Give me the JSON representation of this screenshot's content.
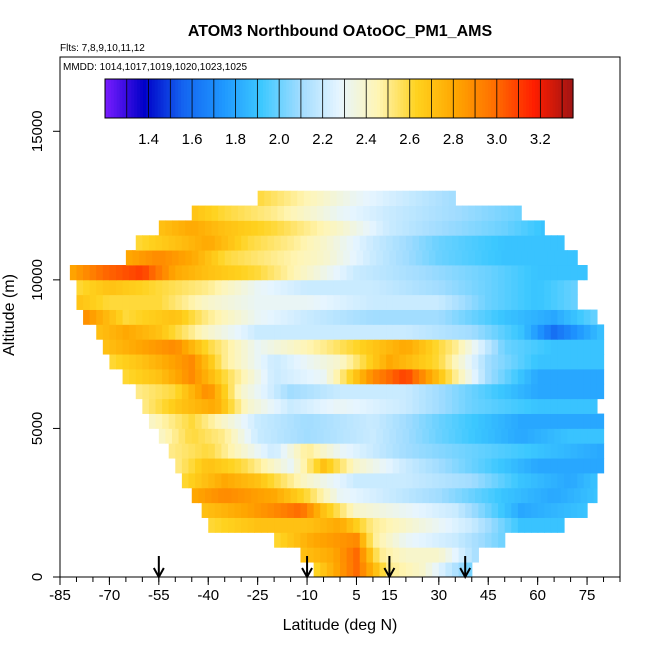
{
  "chart_data": {
    "type": "heatmap",
    "title": "ATOM3 Northbound OAtoOC_PM1_AMS",
    "subtitle_flights": "Flts: 7,8,9,10,11,12",
    "subtitle_dates": "MMDD: 1014,1017,1019,1020,1023,1025",
    "xlabel": "Latitude (deg N)",
    "ylabel": "Altitude (m)",
    "xlim": [
      -85,
      85
    ],
    "ylim": [
      0,
      17500
    ],
    "x_ticks": [
      "-85",
      "-70",
      "-55",
      "-40",
      "-25",
      "-10",
      "5",
      "15",
      "30",
      "45",
      "60",
      "75"
    ],
    "y_ticks": [
      "0",
      "5000",
      "10000",
      "15000"
    ],
    "colorbar": {
      "range": [
        1.2,
        3.35
      ],
      "ticks": [
        "1.4",
        "1.6",
        "1.8",
        "2.0",
        "2.2",
        "2.4",
        "2.6",
        "2.8",
        "3.0",
        "3.2"
      ],
      "colors": [
        "#7a1cff",
        "#0000c8",
        "#1464f0",
        "#1e96ff",
        "#3cc8ff",
        "#a0dcff",
        "#e6f5ff",
        "#fff5b4",
        "#ffd21e",
        "#ffa500",
        "#ff6e00",
        "#ff1e00",
        "#a01414"
      ]
    },
    "arrows_latitude": [
      -55,
      -10,
      15,
      38
    ],
    "altitude_bins_m": [
      0,
      500,
      1000,
      1500,
      2000,
      2500,
      3000,
      3500,
      4000,
      4500,
      5000,
      5500,
      6000,
      6500,
      7000,
      7500,
      8000,
      8500,
      9000,
      9500,
      10000,
      10500,
      11000,
      11500,
      12000,
      12500
    ],
    "lat_extent_by_altitude_deg_N": [
      [
        -8,
        40
      ],
      [
        -12,
        42
      ],
      [
        -20,
        50
      ],
      [
        -40,
        68
      ],
      [
        -42,
        75
      ],
      [
        -45,
        78
      ],
      [
        -48,
        78
      ],
      [
        -50,
        80
      ],
      [
        -52,
        80
      ],
      [
        -55,
        80
      ],
      [
        -58,
        80
      ],
      [
        -60,
        78
      ],
      [
        -62,
        80
      ],
      [
        -66,
        80
      ],
      [
        -70,
        80
      ],
      [
        -72,
        80
      ],
      [
        -74,
        80
      ],
      [
        -78,
        78
      ],
      [
        -80,
        72
      ],
      [
        -80,
        72
      ],
      [
        -82,
        75
      ],
      [
        -65,
        72
      ],
      [
        -62,
        68
      ],
      [
        -55,
        62
      ],
      [
        -45,
        55
      ],
      [
        -25,
        35
      ]
    ],
    "profile_values_by_altitude": [
      [
        [
          -8,
          2.6
        ],
        [
          5,
          3.0
        ],
        [
          15,
          2.5
        ],
        [
          25,
          2.4
        ],
        [
          40,
          2.0
        ]
      ],
      [
        [
          -12,
          2.7
        ],
        [
          -2,
          2.8
        ],
        [
          5,
          3.0
        ],
        [
          12,
          2.5
        ],
        [
          20,
          2.4
        ],
        [
          30,
          2.4
        ],
        [
          42,
          2.1
        ]
      ],
      [
        [
          -20,
          2.6
        ],
        [
          -8,
          2.8
        ],
        [
          5,
          2.9
        ],
        [
          10,
          2.5
        ],
        [
          20,
          2.3
        ],
        [
          35,
          2.2
        ],
        [
          50,
          2.0
        ]
      ],
      [
        [
          -40,
          2.6
        ],
        [
          -25,
          2.7
        ],
        [
          -10,
          2.7
        ],
        [
          0,
          2.8
        ],
        [
          10,
          2.5
        ],
        [
          20,
          2.4
        ],
        [
          40,
          2.2
        ],
        [
          55,
          1.9
        ],
        [
          68,
          1.9
        ]
      ],
      [
        [
          -42,
          2.7
        ],
        [
          -30,
          2.8
        ],
        [
          -20,
          2.9
        ],
        [
          -12,
          3.0
        ],
        [
          -5,
          2.7
        ],
        [
          5,
          2.4
        ],
        [
          20,
          2.3
        ],
        [
          35,
          2.2
        ],
        [
          55,
          1.8
        ],
        [
          75,
          1.9
        ]
      ],
      [
        [
          -45,
          2.8
        ],
        [
          -35,
          2.9
        ],
        [
          -20,
          2.8
        ],
        [
          -10,
          2.6
        ],
        [
          0,
          2.3
        ],
        [
          15,
          2.2
        ],
        [
          30,
          2.1
        ],
        [
          50,
          1.9
        ],
        [
          65,
          1.8
        ],
        [
          78,
          1.9
        ]
      ],
      [
        [
          -48,
          2.6
        ],
        [
          -35,
          2.8
        ],
        [
          -25,
          2.7
        ],
        [
          -10,
          2.4
        ],
        [
          5,
          2.2
        ],
        [
          20,
          2.2
        ],
        [
          40,
          2.1
        ],
        [
          55,
          1.9
        ],
        [
          70,
          1.8
        ],
        [
          78,
          1.9
        ]
      ],
      [
        [
          -50,
          2.5
        ],
        [
          -40,
          2.7
        ],
        [
          -30,
          2.6
        ],
        [
          -15,
          2.3
        ],
        [
          -5,
          2.7
        ],
        [
          5,
          2.4
        ],
        [
          20,
          2.2
        ],
        [
          40,
          2.0
        ],
        [
          60,
          1.8
        ],
        [
          80,
          1.8
        ]
      ],
      [
        [
          -52,
          2.5
        ],
        [
          -40,
          2.6
        ],
        [
          -30,
          2.4
        ],
        [
          -20,
          2.2
        ],
        [
          -10,
          2.5
        ],
        [
          0,
          2.3
        ],
        [
          20,
          2.1
        ],
        [
          40,
          2.0
        ],
        [
          60,
          1.9
        ],
        [
          80,
          1.8
        ]
      ],
      [
        [
          -55,
          2.4
        ],
        [
          -45,
          2.6
        ],
        [
          -35,
          2.5
        ],
        [
          -25,
          2.2
        ],
        [
          -10,
          2.1
        ],
        [
          10,
          2.2
        ],
        [
          30,
          2.0
        ],
        [
          55,
          1.8
        ],
        [
          70,
          1.9
        ],
        [
          80,
          1.9
        ]
      ],
      [
        [
          -58,
          2.4
        ],
        [
          -45,
          2.6
        ],
        [
          -35,
          2.4
        ],
        [
          -25,
          2.2
        ],
        [
          -10,
          2.1
        ],
        [
          10,
          2.2
        ],
        [
          30,
          2.0
        ],
        [
          55,
          1.8
        ],
        [
          70,
          1.8
        ],
        [
          80,
          1.8
        ]
      ],
      [
        [
          -60,
          2.5
        ],
        [
          -48,
          2.7
        ],
        [
          -38,
          2.8
        ],
        [
          -28,
          2.4
        ],
        [
          -15,
          2.2
        ],
        [
          0,
          2.3
        ],
        [
          20,
          2.2
        ],
        [
          40,
          2.0
        ],
        [
          60,
          1.9
        ],
        [
          78,
          1.9
        ]
      ],
      [
        [
          -62,
          2.5
        ],
        [
          -50,
          2.6
        ],
        [
          -40,
          2.9
        ],
        [
          -30,
          2.4
        ],
        [
          -15,
          2.1
        ],
        [
          0,
          2.2
        ],
        [
          20,
          2.2
        ],
        [
          40,
          2.0
        ],
        [
          60,
          1.8
        ],
        [
          80,
          1.8
        ]
      ],
      [
        [
          -66,
          2.6
        ],
        [
          -55,
          2.7
        ],
        [
          -45,
          2.9
        ],
        [
          -35,
          2.6
        ],
        [
          -20,
          2.2
        ],
        [
          -5,
          2.3
        ],
        [
          10,
          2.9
        ],
        [
          20,
          3.1
        ],
        [
          30,
          2.7
        ],
        [
          45,
          2.1
        ],
        [
          60,
          1.8
        ],
        [
          80,
          1.8
        ]
      ],
      [
        [
          -70,
          2.6
        ],
        [
          -60,
          2.7
        ],
        [
          -45,
          2.9
        ],
        [
          -35,
          2.5
        ],
        [
          -20,
          2.2
        ],
        [
          0,
          2.4
        ],
        [
          15,
          2.8
        ],
        [
          30,
          2.6
        ],
        [
          45,
          2.1
        ],
        [
          60,
          1.9
        ],
        [
          80,
          1.9
        ]
      ],
      [
        [
          -72,
          2.7
        ],
        [
          -62,
          2.8
        ],
        [
          -50,
          2.9
        ],
        [
          -40,
          2.6
        ],
        [
          -25,
          2.3
        ],
        [
          -5,
          2.5
        ],
        [
          20,
          2.8
        ],
        [
          35,
          2.5
        ],
        [
          50,
          2.0
        ],
        [
          65,
          1.9
        ],
        [
          80,
          1.9
        ]
      ],
      [
        [
          -74,
          2.7
        ],
        [
          -65,
          2.8
        ],
        [
          -55,
          2.7
        ],
        [
          -40,
          2.4
        ],
        [
          -25,
          2.2
        ],
        [
          0,
          2.2
        ],
        [
          20,
          2.2
        ],
        [
          40,
          2.1
        ],
        [
          55,
          1.9
        ],
        [
          65,
          1.6
        ],
        [
          80,
          1.9
        ]
      ],
      [
        [
          -78,
          2.9
        ],
        [
          -65,
          2.6
        ],
        [
          -50,
          2.7
        ],
        [
          -40,
          2.5
        ],
        [
          -25,
          2.3
        ],
        [
          -10,
          2.2
        ],
        [
          10,
          2.1
        ],
        [
          30,
          2.1
        ],
        [
          50,
          1.9
        ],
        [
          65,
          1.8
        ],
        [
          78,
          2.0
        ]
      ],
      [
        [
          -80,
          2.7
        ],
        [
          -70,
          2.6
        ],
        [
          -55,
          2.6
        ],
        [
          -40,
          2.4
        ],
        [
          -25,
          2.3
        ],
        [
          -10,
          2.3
        ],
        [
          10,
          2.2
        ],
        [
          30,
          2.2
        ],
        [
          45,
          2.0
        ],
        [
          60,
          1.9
        ],
        [
          72,
          2.0
        ]
      ],
      [
        [
          -80,
          2.6
        ],
        [
          -70,
          2.7
        ],
        [
          -55,
          2.6
        ],
        [
          -40,
          2.5
        ],
        [
          -25,
          2.3
        ],
        [
          -10,
          2.2
        ],
        [
          10,
          2.2
        ],
        [
          30,
          2.1
        ],
        [
          45,
          2.0
        ],
        [
          60,
          1.9
        ],
        [
          72,
          2.0
        ]
      ],
      [
        [
          -82,
          2.8
        ],
        [
          -72,
          3.0
        ],
        [
          -60,
          3.1
        ],
        [
          -50,
          2.8
        ],
        [
          -40,
          2.7
        ],
        [
          -25,
          2.6
        ],
        [
          -10,
          2.4
        ],
        [
          5,
          2.2
        ],
        [
          25,
          2.1
        ],
        [
          45,
          2.0
        ],
        [
          60,
          1.9
        ],
        [
          75,
          1.9
        ]
      ],
      [
        [
          -65,
          2.8
        ],
        [
          -55,
          2.9
        ],
        [
          -45,
          2.8
        ],
        [
          -35,
          2.6
        ],
        [
          -20,
          2.5
        ],
        [
          -5,
          2.4
        ],
        [
          10,
          2.2
        ],
        [
          30,
          2.0
        ],
        [
          50,
          1.9
        ],
        [
          72,
          1.9
        ]
      ],
      [
        [
          -62,
          2.6
        ],
        [
          -50,
          2.7
        ],
        [
          -40,
          2.8
        ],
        [
          -28,
          2.6
        ],
        [
          -15,
          2.5
        ],
        [
          -5,
          2.4
        ],
        [
          10,
          2.2
        ],
        [
          30,
          2.0
        ],
        [
          50,
          1.9
        ],
        [
          68,
          1.9
        ]
      ],
      [
        [
          -55,
          2.7
        ],
        [
          -45,
          2.8
        ],
        [
          -35,
          2.7
        ],
        [
          -20,
          2.6
        ],
        [
          -10,
          2.5
        ],
        [
          0,
          2.4
        ],
        [
          15,
          2.2
        ],
        [
          30,
          2.1
        ],
        [
          50,
          2.0
        ],
        [
          62,
          1.9
        ]
      ],
      [
        [
          -45,
          2.7
        ],
        [
          -35,
          2.6
        ],
        [
          -20,
          2.5
        ],
        [
          -10,
          2.4
        ],
        [
          0,
          2.3
        ],
        [
          15,
          2.2
        ],
        [
          35,
          2.1
        ],
        [
          55,
          2.0
        ]
      ],
      [
        [
          -25,
          2.6
        ],
        [
          -15,
          2.5
        ],
        [
          -5,
          2.4
        ],
        [
          5,
          2.3
        ],
        [
          20,
          2.2
        ],
        [
          35,
          2.1
        ]
      ]
    ]
  }
}
